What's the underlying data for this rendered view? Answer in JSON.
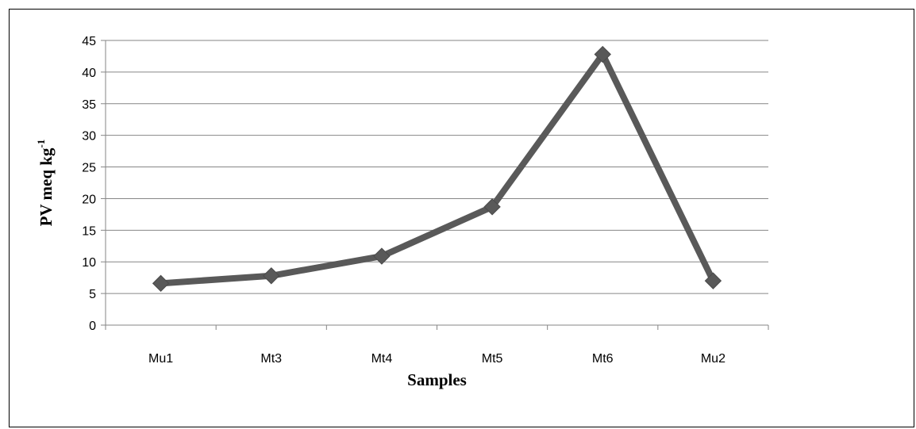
{
  "chart_data": {
    "type": "line",
    "categories": [
      "Mu1",
      "Mt3",
      "Mt4",
      "Mt5",
      "Mt6",
      "Mu2"
    ],
    "series": [
      {
        "values": [
          6.6,
          7.8,
          10.9,
          18.7,
          42.8,
          7.0
        ]
      }
    ],
    "xlabel": "Samples",
    "ylabel": {
      "text": "PV meq kg",
      "superscript": "-1"
    },
    "ylim": [
      0,
      45
    ],
    "yticks": [
      0,
      5,
      10,
      15,
      20,
      25,
      30,
      35,
      40,
      45
    ],
    "grid": true,
    "legend": "none",
    "colors": {
      "line": "#595959",
      "marker": "#595959",
      "grid": "#868686",
      "axis": "#868686"
    }
  }
}
